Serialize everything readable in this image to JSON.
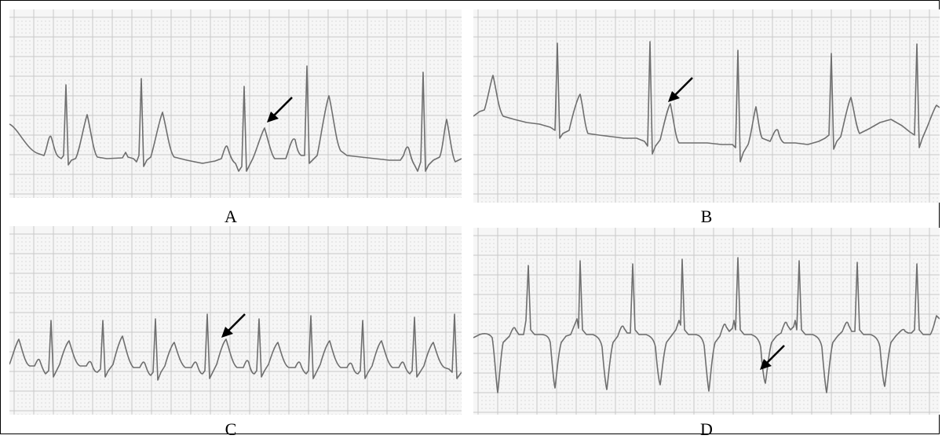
{
  "figure": {
    "panels": [
      {
        "id": "A",
        "label": "A"
      },
      {
        "id": "B",
        "label": "B"
      },
      {
        "id": "C",
        "label": "C"
      },
      {
        "id": "D",
        "label": "D"
      }
    ]
  },
  "colors": {
    "grid_major": "#c8c8c8",
    "grid_minor_dot": "#cfcfcf",
    "trace": "#6f6f6f",
    "arrow": "#000000"
  }
}
